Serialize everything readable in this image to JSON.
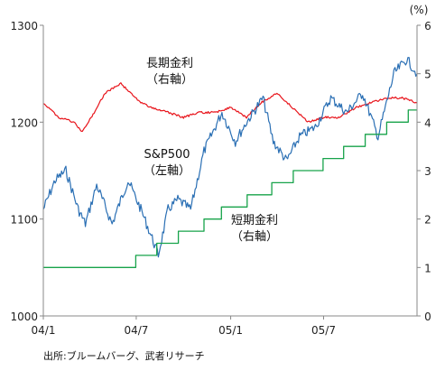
{
  "chart_data": {
    "type": "line",
    "y_left": {
      "ticks": [
        "1000",
        "1100",
        "1200",
        "1300"
      ],
      "ylim": [
        1000,
        1300
      ]
    },
    "y_right": {
      "unit": "(%)",
      "ticks": [
        "0",
        "1",
        "2",
        "3",
        "4",
        "5",
        "6"
      ],
      "ylim": [
        0,
        6
      ]
    },
    "x": {
      "tick_labels": [
        "04/1",
        "04/7",
        "05/1",
        "05/7"
      ],
      "xlim": [
        "2004-01-02",
        "2005-12-30"
      ]
    },
    "grid": false,
    "annotations": [
      {
        "key": "long",
        "lines": [
          "長期金利",
          "（右軸）"
        ]
      },
      {
        "key": "sp500",
        "lines": [
          "S&P500",
          "（左軸）"
        ]
      },
      {
        "key": "short",
        "lines": [
          "短期金利",
          "（右軸）"
        ]
      }
    ],
    "series": [
      {
        "key": "long_rate",
        "axis": "right",
        "color": "#e8141b",
        "x": [
          "2004-01-02",
          "2004-02-01",
          "2004-03-01",
          "2004-03-18",
          "2004-04-10",
          "2004-05-01",
          "2004-06-01",
          "2004-06-20",
          "2004-07-10",
          "2004-08-01",
          "2004-09-01",
          "2004-10-01",
          "2004-11-01",
          "2004-12-01",
          "2005-01-01",
          "2005-02-01",
          "2005-03-01",
          "2005-04-01",
          "2005-05-01",
          "2005-06-01",
          "2005-07-01",
          "2005-08-01",
          "2005-09-01",
          "2005-10-01",
          "2005-11-01",
          "2005-12-01",
          "2005-12-30"
        ],
        "y": [
          4.4,
          4.1,
          4.0,
          3.8,
          4.2,
          4.6,
          4.8,
          4.6,
          4.4,
          4.3,
          4.2,
          4.1,
          4.2,
          4.2,
          4.3,
          4.1,
          4.4,
          4.6,
          4.3,
          4.0,
          4.1,
          4.1,
          4.3,
          4.4,
          4.5,
          4.5,
          4.4
        ]
      },
      {
        "key": "sp500",
        "axis": "left",
        "color": "#2a6fb4",
        "x": [
          "2004-01-02",
          "2004-01-25",
          "2004-02-15",
          "2004-03-10",
          "2004-03-24",
          "2004-04-15",
          "2004-05-15",
          "2004-06-15",
          "2004-07-10",
          "2004-08-01",
          "2004-08-13",
          "2004-09-01",
          "2004-09-20",
          "2004-10-15",
          "2004-11-10",
          "2004-12-15",
          "2005-01-10",
          "2005-02-01",
          "2005-03-05",
          "2005-03-25",
          "2005-04-20",
          "2005-05-15",
          "2005-06-15",
          "2005-07-15",
          "2005-08-15",
          "2005-09-15",
          "2005-10-15",
          "2005-11-15",
          "2005-12-10",
          "2005-12-30"
        ],
        "y": [
          1110,
          1140,
          1150,
          1110,
          1095,
          1135,
          1095,
          1140,
          1110,
          1080,
          1063,
          1110,
          1120,
          1110,
          1170,
          1210,
          1180,
          1200,
          1225,
          1180,
          1160,
          1185,
          1195,
          1225,
          1210,
          1230,
          1185,
          1250,
          1265,
          1250
        ]
      },
      {
        "key": "short_rate",
        "axis": "right",
        "color": "#17a34a",
        "x": [
          "2004-01-02",
          "2004-06-30",
          "2004-08-10",
          "2004-09-21",
          "2004-11-10",
          "2004-12-14",
          "2005-02-02",
          "2005-03-22",
          "2005-05-03",
          "2005-06-30",
          "2005-08-09",
          "2005-09-20",
          "2005-11-01",
          "2005-12-13",
          "2005-12-30"
        ],
        "y": [
          1.0,
          1.25,
          1.5,
          1.75,
          2.0,
          2.25,
          2.5,
          2.75,
          3.0,
          3.25,
          3.5,
          3.75,
          4.0,
          4.25,
          4.25
        ]
      }
    ]
  },
  "footer": {
    "source": "出所:ブルームバーグ、武者リサーチ"
  }
}
